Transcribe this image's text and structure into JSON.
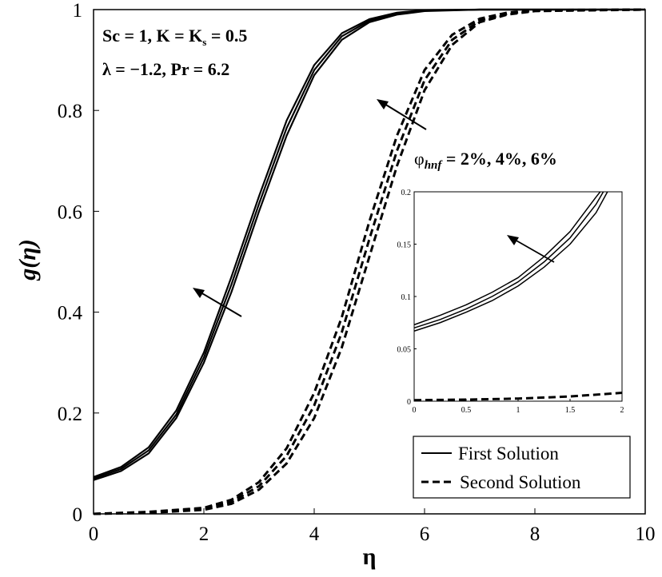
{
  "chart_data": [
    {
      "type": "line",
      "xlabel": "η",
      "ylabel": "g(η)",
      "xlim": [
        0,
        10
      ],
      "ylim": [
        0,
        1
      ],
      "xticks": [
        "0",
        "2",
        "4",
        "6",
        "8",
        "10"
      ],
      "yticks": [
        "0",
        "0.2",
        "0.4",
        "0.6",
        "0.8",
        "1"
      ],
      "grid": false,
      "legend": [
        {
          "name": "First Solution",
          "style": "solid"
        },
        {
          "name": "Second Solution",
          "style": "dashed"
        }
      ],
      "legend_position": "bottom-right",
      "annotations": {
        "params_line1": "Sc = 1, K = K",
        "params_line1_sub": "s",
        "params_line1_tail": " = 0.5",
        "params_line2": "λ = −1.2, Pr = 6.2",
        "phi_symbol": "φ",
        "phi_sub": "hnf",
        "phi_values": " = 2%, 4%, 6%"
      },
      "series": [
        {
          "name": "First Solution, φhnf = 2%",
          "style": "solid",
          "x": [
            0,
            0.5,
            1,
            1.5,
            2,
            2.5,
            3,
            3.5,
            4,
            4.5,
            5,
            5.5,
            6,
            7,
            8,
            10
          ],
          "y": [
            0.067,
            0.085,
            0.12,
            0.19,
            0.3,
            0.44,
            0.6,
            0.75,
            0.87,
            0.94,
            0.975,
            0.99,
            0.997,
            1.0,
            1.0,
            1.0
          ]
        },
        {
          "name": "First Solution, φhnf = 4%",
          "style": "solid",
          "x": [
            0,
            0.5,
            1,
            1.5,
            2,
            2.5,
            3,
            3.5,
            4,
            4.5,
            5,
            5.5,
            6,
            7,
            8,
            10
          ],
          "y": [
            0.07,
            0.089,
            0.126,
            0.197,
            0.31,
            0.455,
            0.615,
            0.765,
            0.88,
            0.947,
            0.978,
            0.992,
            0.998,
            1.0,
            1.0,
            1.0
          ]
        },
        {
          "name": "First Solution, φhnf = 6%",
          "style": "solid",
          "x": [
            0,
            0.5,
            1,
            1.5,
            2,
            2.5,
            3,
            3.5,
            4,
            4.5,
            5,
            5.5,
            6,
            7,
            8,
            10
          ],
          "y": [
            0.073,
            0.093,
            0.132,
            0.205,
            0.32,
            0.47,
            0.63,
            0.78,
            0.89,
            0.953,
            0.981,
            0.994,
            0.999,
            1.0,
            1.0,
            1.0
          ]
        },
        {
          "name": "Second Solution, φhnf = 2%",
          "style": "dashed",
          "x": [
            0,
            1,
            2,
            2.5,
            3,
            3.5,
            4,
            4.5,
            5,
            5.5,
            6,
            6.5,
            7,
            7.5,
            8,
            10
          ],
          "y": [
            0.0,
            0.002,
            0.008,
            0.02,
            0.048,
            0.1,
            0.19,
            0.33,
            0.51,
            0.69,
            0.84,
            0.93,
            0.975,
            0.99,
            0.997,
            1.0
          ]
        },
        {
          "name": "Second Solution, φhnf = 4%",
          "style": "dashed",
          "x": [
            0,
            1,
            2,
            2.5,
            3,
            3.5,
            4,
            4.5,
            5,
            5.5,
            6,
            6.5,
            7,
            7.5,
            8,
            10
          ],
          "y": [
            0.0,
            0.003,
            0.01,
            0.024,
            0.055,
            0.115,
            0.215,
            0.36,
            0.545,
            0.72,
            0.86,
            0.94,
            0.978,
            0.992,
            0.998,
            1.0
          ]
        },
        {
          "name": "Second Solution, φhnf = 6%",
          "style": "dashed",
          "x": [
            0,
            1,
            2,
            2.5,
            3,
            3.5,
            4,
            4.5,
            5,
            5.5,
            6,
            6.5,
            7,
            7.5,
            8,
            10
          ],
          "y": [
            0.0,
            0.004,
            0.012,
            0.028,
            0.063,
            0.13,
            0.24,
            0.39,
            0.58,
            0.75,
            0.88,
            0.95,
            0.982,
            0.994,
            0.999,
            1.0
          ]
        }
      ]
    },
    {
      "type": "line",
      "title": "inset",
      "xlim": [
        0,
        2
      ],
      "ylim": [
        0,
        0.2
      ],
      "xticks": [
        "0",
        "0.5",
        "1",
        "1.5",
        "2"
      ],
      "yticks": [
        "0",
        "0.05",
        "0.1",
        "0.15",
        "0.2"
      ],
      "grid": false,
      "series": [
        {
          "name": "First Solution, φhnf = 2%",
          "style": "solid",
          "x": [
            0,
            0.25,
            0.5,
            0.75,
            1,
            1.25,
            1.5,
            1.75,
            1.86
          ],
          "y": [
            0.067,
            0.075,
            0.085,
            0.096,
            0.11,
            0.128,
            0.15,
            0.18,
            0.2
          ]
        },
        {
          "name": "First Solution, φhnf = 4%",
          "style": "solid",
          "x": [
            0,
            0.25,
            0.5,
            0.75,
            1,
            1.25,
            1.5,
            1.75,
            1.82
          ],
          "y": [
            0.07,
            0.078,
            0.088,
            0.1,
            0.114,
            0.133,
            0.156,
            0.188,
            0.2
          ]
        },
        {
          "name": "First Solution, φhnf = 6%",
          "style": "solid",
          "x": [
            0,
            0.25,
            0.5,
            0.75,
            1,
            1.25,
            1.5,
            1.75,
            1.79
          ],
          "y": [
            0.073,
            0.082,
            0.092,
            0.104,
            0.118,
            0.138,
            0.162,
            0.195,
            0.2
          ]
        },
        {
          "name": "Second Solution",
          "style": "dashed",
          "x": [
            0,
            0.5,
            1,
            1.5,
            2
          ],
          "y": [
            0.001,
            0.0015,
            0.0025,
            0.0045,
            0.008
          ]
        }
      ]
    }
  ]
}
